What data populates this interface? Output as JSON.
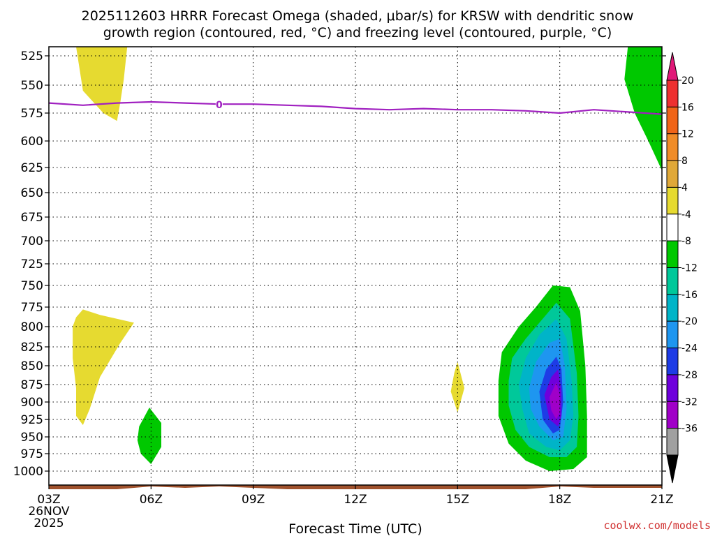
{
  "chart_data": {
    "type": "time-height",
    "title": "2025112603 HRRR Forecast Omega (shaded, μbar/s) for KRSW with dendritic snow",
    "title_line2": "growth region (contoured, red, °C) and freezing level (contoured, purple, °C)",
    "xlabel": "Forecast Time (UTC)",
    "date_label": [
      "26NOV",
      "2025"
    ],
    "credit": "coolwx.com/models",
    "x_hours": [
      3,
      6,
      9,
      12,
      15,
      18,
      21
    ],
    "x_tick_labels": [
      "03Z",
      "06Z",
      "09Z",
      "12Z",
      "15Z",
      "18Z",
      "21Z"
    ],
    "xlim": [
      3,
      21
    ],
    "y_levels_hpa": [
      525,
      550,
      575,
      600,
      625,
      650,
      675,
      700,
      725,
      750,
      775,
      800,
      825,
      850,
      875,
      900,
      925,
      950,
      975,
      1000
    ],
    "y_tick_labels": [
      "525",
      "550",
      "575",
      "600",
      "625",
      "650",
      "675",
      "700",
      "725",
      "750",
      "775",
      "800",
      "825",
      "850",
      "875",
      "900",
      "925",
      "950",
      "975",
      "1000"
    ],
    "ylim_hpa": [
      515,
      1010
    ],
    "colorbar": {
      "labels": [
        "20",
        "16",
        "12",
        "8",
        "4",
        "-4",
        "-8",
        "-12",
        "-16",
        "-20",
        "-24",
        "-28",
        "-32",
        "-36"
      ],
      "colors": [
        "#e01878",
        "#ee3030",
        "#f06418",
        "#f08c28",
        "#e0a838",
        "#e6da30",
        "#ffffff",
        "#00c800",
        "#00c89a",
        "#00b4c8",
        "#1e96f0",
        "#1e3ce6",
        "#6e00dc",
        "#a000c8",
        "#a0a0a0",
        "#000000"
      ]
    },
    "freezing_level": {
      "label": "0",
      "color": "#a020c0",
      "hours": [
        3.0,
        4.0,
        5.0,
        6.0,
        7.0,
        8.0,
        9.0,
        10.0,
        11.0,
        12.0,
        13.0,
        14.0,
        15.0,
        16.0,
        17.0,
        18.0,
        19.0,
        20.0,
        21.0
      ],
      "pressure_hpa": [
        566,
        568,
        566,
        565,
        566,
        567,
        567,
        568,
        569,
        571,
        572,
        571,
        572,
        572,
        573,
        575,
        572,
        574,
        576
      ]
    },
    "omega_regions": [
      {
        "name": "upper-left-positive",
        "value_range": "4 to 8",
        "color": "#e6da30",
        "points": [
          [
            3.8,
            515
          ],
          [
            5.3,
            515
          ],
          [
            5.2,
            545
          ],
          [
            5.1,
            565
          ],
          [
            5.0,
            582
          ],
          [
            4.6,
            575
          ],
          [
            4.0,
            555
          ]
        ]
      },
      {
        "name": "lower-left-positive",
        "value_range": "4 to 8",
        "color": "#e6da30",
        "points": [
          [
            3.7,
            800
          ],
          [
            3.8,
            788
          ],
          [
            4.0,
            778
          ],
          [
            4.5,
            785
          ],
          [
            5.5,
            795
          ],
          [
            5.1,
            820
          ],
          [
            4.5,
            865
          ],
          [
            4.2,
            910
          ],
          [
            4.0,
            933
          ],
          [
            3.8,
            920
          ],
          [
            3.8,
            880
          ],
          [
            3.7,
            840
          ]
        ]
      },
      {
        "name": "mid-positive",
        "value_range": "4 to 8",
        "color": "#e6da30",
        "points": [
          [
            15.0,
            845
          ],
          [
            15.2,
            880
          ],
          [
            15.0,
            915
          ],
          [
            14.8,
            885
          ],
          [
            14.9,
            860
          ]
        ]
      },
      {
        "name": "small-negative-06z",
        "value_range": "-4 to -8",
        "color": "#00c800",
        "points": [
          [
            5.65,
            935
          ],
          [
            5.95,
            908
          ],
          [
            6.3,
            930
          ],
          [
            6.3,
            965
          ],
          [
            6.0,
            990
          ],
          [
            5.7,
            975
          ],
          [
            5.6,
            955
          ]
        ]
      },
      {
        "name": "upper-right-negative",
        "value_range": "-4 to -8",
        "color": "#00c800",
        "points": [
          [
            20.0,
            515
          ],
          [
            21.0,
            515
          ],
          [
            21.0,
            628
          ],
          [
            20.6,
            600
          ],
          [
            20.2,
            575
          ],
          [
            19.9,
            545
          ]
        ]
      },
      {
        "name": "storm-outer",
        "value_range": "-4 to -8",
        "color": "#00c800",
        "points": [
          [
            16.2,
            870
          ],
          [
            16.3,
            832
          ],
          [
            16.8,
            800
          ],
          [
            17.3,
            775
          ],
          [
            17.8,
            750
          ],
          [
            18.3,
            752
          ],
          [
            18.6,
            780
          ],
          [
            18.75,
            850
          ],
          [
            18.8,
            920
          ],
          [
            18.8,
            980
          ],
          [
            18.4,
            997
          ],
          [
            17.7,
            1000
          ],
          [
            17.0,
            985
          ],
          [
            16.5,
            960
          ],
          [
            16.2,
            920
          ]
        ]
      },
      {
        "name": "storm-8",
        "value_range": "-8 to -12",
        "color": "#00c89a",
        "points": [
          [
            16.5,
            870
          ],
          [
            16.6,
            840
          ],
          [
            17.0,
            815
          ],
          [
            17.5,
            790
          ],
          [
            17.9,
            770
          ],
          [
            18.3,
            790
          ],
          [
            18.5,
            860
          ],
          [
            18.55,
            920
          ],
          [
            18.5,
            965
          ],
          [
            18.2,
            980
          ],
          [
            17.7,
            980
          ],
          [
            17.1,
            965
          ],
          [
            16.7,
            940
          ],
          [
            16.5,
            905
          ]
        ]
      },
      {
        "name": "storm-12",
        "value_range": "-12 to -16",
        "color": "#00b4c8",
        "points": [
          [
            16.8,
            875
          ],
          [
            17.0,
            840
          ],
          [
            17.4,
            810
          ],
          [
            17.9,
            790
          ],
          [
            18.2,
            815
          ],
          [
            18.35,
            870
          ],
          [
            18.4,
            920
          ],
          [
            18.3,
            955
          ],
          [
            18.0,
            970
          ],
          [
            17.6,
            965
          ],
          [
            17.1,
            945
          ],
          [
            16.9,
            910
          ]
        ]
      },
      {
        "name": "storm-16",
        "value_range": "-16 to -20",
        "color": "#1e96f0",
        "points": [
          [
            17.1,
            880
          ],
          [
            17.3,
            845
          ],
          [
            17.7,
            820
          ],
          [
            18.0,
            815
          ],
          [
            18.15,
            850
          ],
          [
            18.2,
            910
          ],
          [
            18.1,
            950
          ],
          [
            17.8,
            955
          ],
          [
            17.4,
            935
          ],
          [
            17.15,
            910
          ]
        ]
      },
      {
        "name": "storm-20",
        "value_range": "-20 to -24",
        "color": "#1e3ce6",
        "points": [
          [
            17.4,
            885
          ],
          [
            17.6,
            855
          ],
          [
            17.9,
            838
          ],
          [
            18.05,
            855
          ],
          [
            18.1,
            900
          ],
          [
            18.0,
            940
          ],
          [
            17.8,
            945
          ],
          [
            17.5,
            925
          ]
        ]
      },
      {
        "name": "storm-24",
        "value_range": "-24 to -28",
        "color": "#6e00dc",
        "points": [
          [
            17.55,
            890
          ],
          [
            17.75,
            865
          ],
          [
            17.95,
            855
          ],
          [
            18.05,
            885
          ],
          [
            18.05,
            920
          ],
          [
            17.95,
            935
          ],
          [
            17.7,
            925
          ]
        ]
      },
      {
        "name": "storm-28",
        "value_range": "-28 to -32",
        "color": "#a000c8",
        "points": [
          [
            17.7,
            893
          ],
          [
            17.9,
            872
          ],
          [
            18.0,
            890
          ],
          [
            18.0,
            915
          ],
          [
            17.9,
            925
          ],
          [
            17.75,
            912
          ]
        ]
      }
    ],
    "terrain": {
      "color": "#a0522d",
      "hours": [
        3.0,
        5.0,
        6.0,
        7.0,
        8.0,
        9.0,
        10.0,
        12.0,
        15.0,
        17.0,
        18.0,
        19.0,
        21.0
      ],
      "top_pressure_hpa": [
        1013,
        1013,
        1011,
        1012,
        1011,
        1012,
        1013,
        1013,
        1013,
        1013,
        1011,
        1012,
        1012
      ]
    }
  }
}
